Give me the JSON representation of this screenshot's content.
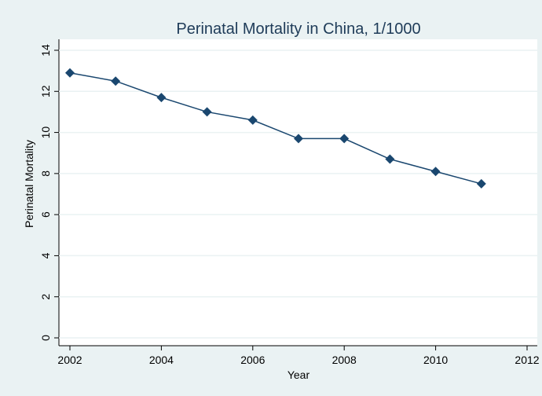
{
  "chart_data": {
    "type": "line",
    "title": "Perinatal Mortality in China, 1/1000",
    "x_label": "Year",
    "y_label": "Perinatal Mortality",
    "x": [
      2002,
      2003,
      2004,
      2005,
      2006,
      2007,
      2008,
      2009,
      2010,
      2011
    ],
    "series": [
      {
        "name": "Perinatal Mortality",
        "color": "#1a476f",
        "values": [
          12.9,
          12.5,
          11.7,
          11.0,
          10.6,
          9.7,
          9.7,
          8.7,
          8.1,
          7.5
        ]
      }
    ],
    "xlim": [
      2002,
      2012
    ],
    "xticks": [
      2002,
      2004,
      2006,
      2008,
      2010,
      2012
    ],
    "ylim": [
      0,
      14
    ],
    "yticks": [
      0,
      2,
      4,
      6,
      8,
      10,
      12,
      14
    ],
    "grid": true
  }
}
